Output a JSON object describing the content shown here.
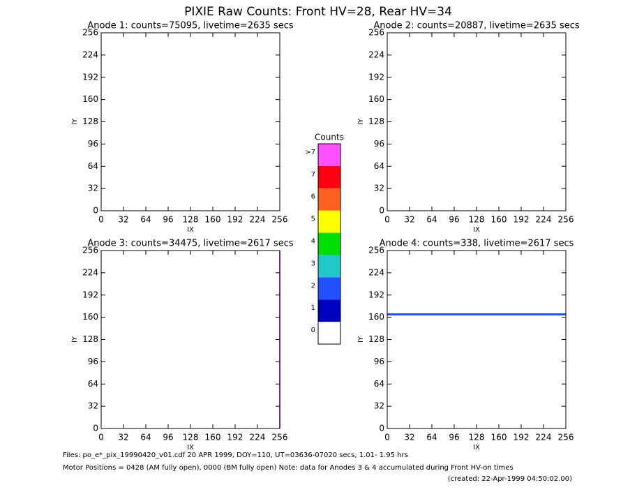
{
  "title": "PIXIE Raw Counts:  Front HV=28, Rear HV=34",
  "chart_data": [
    {
      "type": "heatmap",
      "title": "Anode 1: counts=75095, livetime=2635 secs",
      "x_label": "IX",
      "y_label": "IY",
      "xlim": [
        0,
        256
      ],
      "ylim": [
        0,
        256
      ],
      "xticks": [
        0,
        32,
        64,
        96,
        128,
        160,
        192,
        224,
        256
      ],
      "yticks": [
        0,
        32,
        64,
        96,
        128,
        160,
        192,
        224,
        256
      ]
    },
    {
      "type": "heatmap",
      "title": "Anode 2: counts=20887, livetime=2635 secs",
      "x_label": "IX",
      "y_label": "IY",
      "xlim": [
        0,
        256
      ],
      "ylim": [
        0,
        256
      ],
      "xticks": [
        0,
        32,
        64,
        96,
        128,
        160,
        192,
        224,
        256
      ],
      "yticks": [
        0,
        32,
        64,
        96,
        128,
        160,
        192,
        224,
        256
      ]
    },
    {
      "type": "heatmap",
      "title": "Anode 3: counts=34475, livetime=2617 secs",
      "x_label": "IX",
      "y_label": "IY",
      "xlim": [
        0,
        256
      ],
      "ylim": [
        0,
        256
      ],
      "xticks": [
        0,
        32,
        64,
        96,
        128,
        160,
        192,
        224,
        256
      ],
      "yticks": [
        0,
        32,
        64,
        96,
        128,
        160,
        192,
        224,
        256
      ]
    },
    {
      "type": "heatmap",
      "title": "Anode 4: counts=338, livetime=2617 secs",
      "x_label": "IX",
      "y_label": "IY",
      "xlim": [
        0,
        256
      ],
      "ylim": [
        0,
        256
      ],
      "xticks": [
        0,
        32,
        64,
        96,
        128,
        160,
        192,
        224,
        256
      ],
      "yticks": [
        0,
        32,
        64,
        96,
        128,
        160,
        192,
        224,
        256
      ]
    }
  ],
  "colorbar": {
    "title": "Counts",
    "categories": [
      "0",
      "1",
      "2",
      "3",
      "4",
      "5",
      "6",
      "7",
      ">7"
    ],
    "colors": [
      "#ffffff",
      "#0000c0",
      "#2050ff",
      "#20c8c8",
      "#00e000",
      "#ffff00",
      "#ff6020",
      "#ff0010",
      "#ff50ff"
    ]
  },
  "footer": [
    "Files: po_e*_pix_19990420_v01.cdf    20 APR 1999, DOY=110, UT=03636-07020 secs,  1.01- 1.95 hrs",
    "Motor Positions = 0428 (AM fully open), 0000 (BM fully open)    Note: data for Anodes 3 & 4 accumulated during Front HV-on times",
    "(created: 22-Apr-1999 04:50:02.00)"
  ]
}
